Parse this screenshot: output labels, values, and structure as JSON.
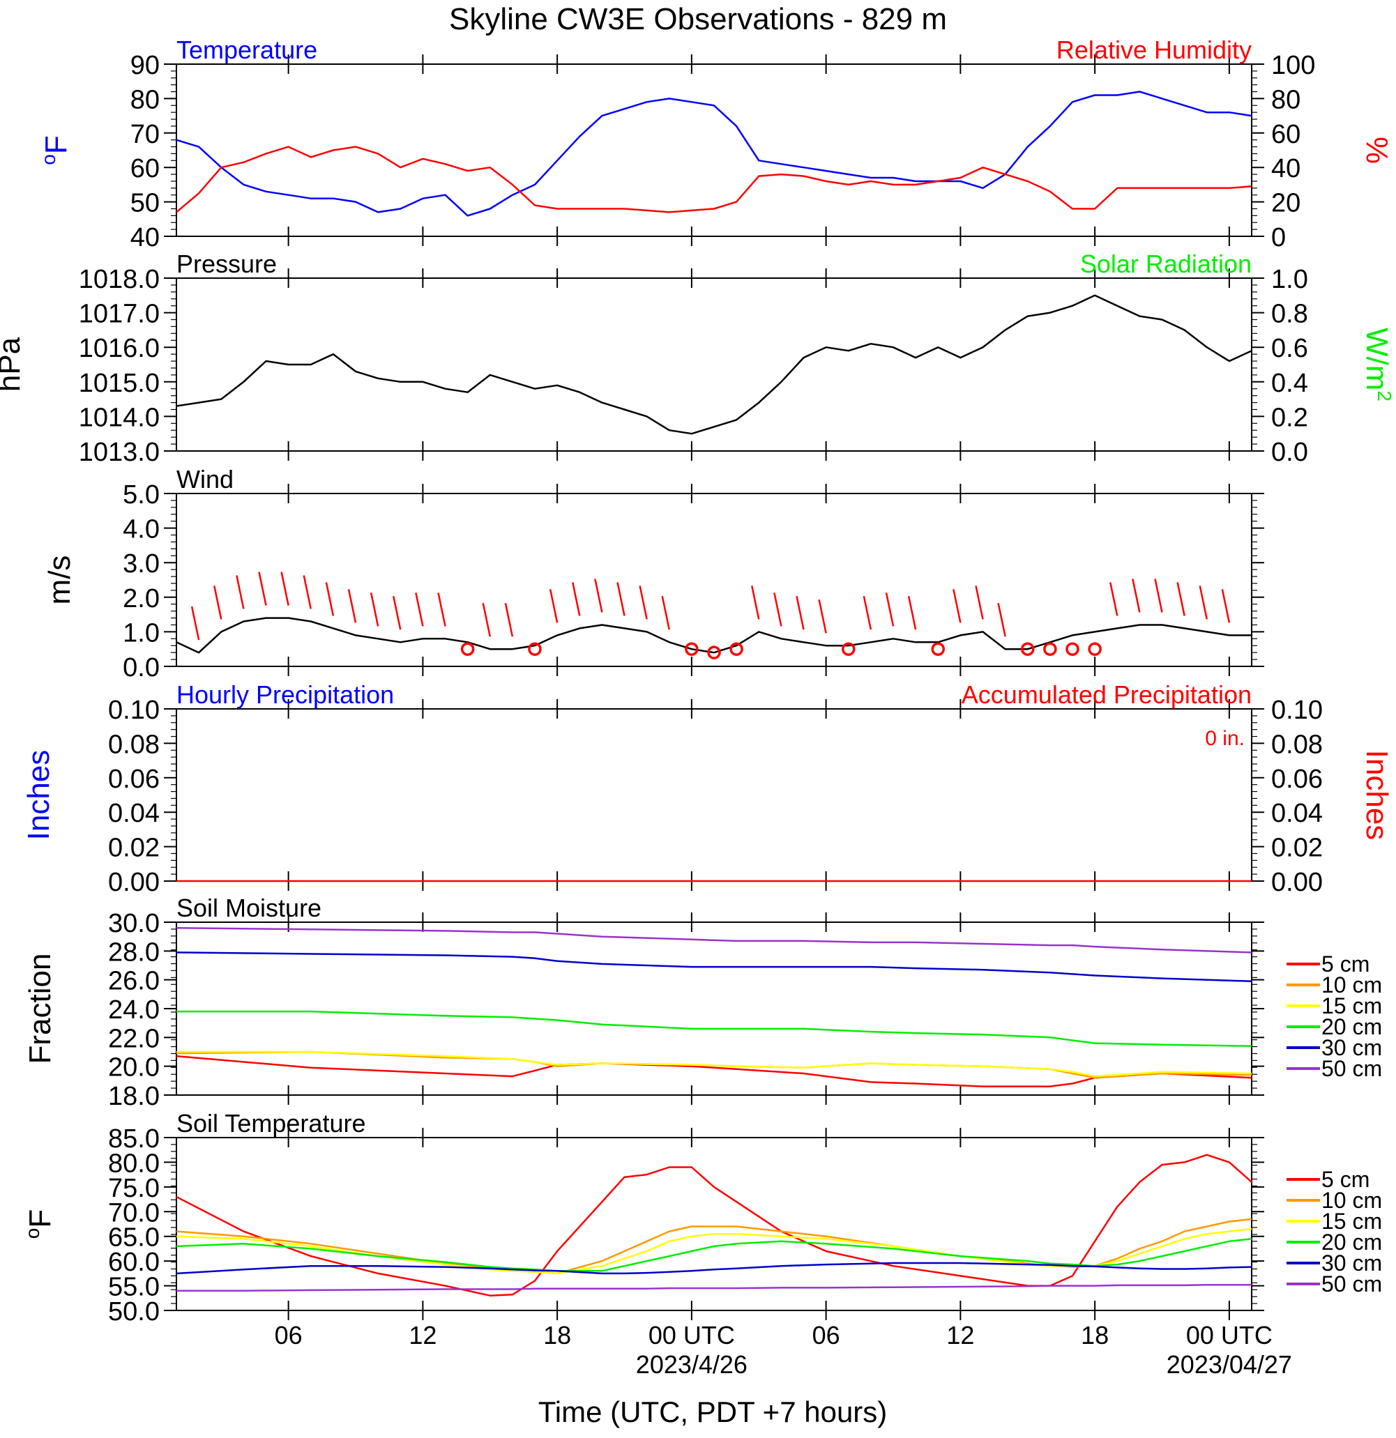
{
  "title": "Skyline CW3E Observations - 829 m",
  "x_axis": {
    "label": "Time (UTC, PDT +7 hours)",
    "ticks": [
      "06",
      "12",
      "18",
      "00 UTC",
      "06",
      "12",
      "18",
      "00 UTC"
    ],
    "tick_hours": [
      6,
      12,
      18,
      24,
      30,
      36,
      42,
      48
    ],
    "dates": [
      "2023/4/26",
      "2023/04/27"
    ],
    "range_hours": [
      1,
      49
    ]
  },
  "colors": {
    "temperature": "#0000ff",
    "humidity": "#ff0000",
    "pressure": "#000000",
    "solar": "#00ee00",
    "wind": "#000000",
    "barb": "#ff0000",
    "hourly_precip": "#0000ff",
    "accum_precip": "#ff0000",
    "d5": "#ff0000",
    "d10": "#ff9900",
    "d15": "#ffff00",
    "d20": "#00ee00",
    "d30": "#0000cc",
    "d50": "#9933cc"
  },
  "chart_data": [
    {
      "type": "line",
      "title_left": "Temperature",
      "title_right": "Relative Humidity",
      "ylabel_left": "oF",
      "ylabel_right": "%",
      "ylim_left": [
        40,
        90
      ],
      "yticks_left": [
        "90",
        "80",
        "70",
        "60",
        "50",
        "40"
      ],
      "ylim_right": [
        0,
        100
      ],
      "yticks_right": [
        "100",
        "80",
        "60",
        "40",
        "20",
        "0"
      ],
      "x": [
        1,
        2,
        3,
        4,
        5,
        6,
        7,
        8,
        9,
        10,
        11,
        12,
        13,
        14,
        15,
        16,
        17,
        18,
        19,
        20,
        21,
        22,
        23,
        24,
        25,
        26,
        27,
        28,
        29,
        30,
        31,
        32,
        33,
        34,
        35,
        36,
        37,
        38,
        39,
        40,
        41,
        42,
        43,
        44,
        45,
        46,
        47,
        48,
        49
      ],
      "series": [
        {
          "name": "Temperature",
          "axis": "left",
          "values": [
            68,
            66,
            60,
            55,
            53,
            52,
            51,
            51,
            50,
            47,
            48,
            51,
            52,
            46,
            48,
            52,
            55,
            62,
            69,
            75,
            77,
            79,
            80,
            79,
            78,
            72,
            62,
            61,
            60,
            59,
            58,
            57,
            57,
            56,
            56,
            56,
            54,
            58,
            66,
            72,
            79,
            81,
            81,
            82,
            80,
            78,
            76,
            76,
            75
          ]
        },
        {
          "name": "Relative Humidity",
          "axis": "right",
          "values": [
            14,
            25,
            40,
            43,
            48,
            52,
            46,
            50,
            52,
            48,
            40,
            45,
            42,
            38,
            40,
            30,
            18,
            16,
            16,
            16,
            16,
            15,
            14,
            15,
            16,
            20,
            35,
            36,
            35,
            32,
            30,
            32,
            30,
            30,
            32,
            34,
            40,
            36,
            32,
            26,
            16,
            16,
            28,
            28,
            28,
            28,
            28,
            28,
            29
          ]
        }
      ]
    },
    {
      "type": "line",
      "title_left": "Pressure",
      "title_right": "Solar Radiation",
      "ylabel_left": "hPa",
      "ylabel_right": "W/m2",
      "ylim_left": [
        1013,
        1018
      ],
      "yticks_left": [
        "1018.0",
        "1017.0",
        "1016.0",
        "1015.0",
        "1014.0",
        "1013.0"
      ],
      "ylim_right": [
        0,
        1
      ],
      "yticks_right": [
        "1.0",
        "0.8",
        "0.6",
        "0.4",
        "0.2",
        "0.0"
      ],
      "x": [
        1,
        2,
        3,
        4,
        5,
        6,
        7,
        8,
        9,
        10,
        11,
        12,
        13,
        14,
        15,
        16,
        17,
        18,
        19,
        20,
        21,
        22,
        23,
        24,
        25,
        26,
        27,
        28,
        29,
        30,
        31,
        32,
        33,
        34,
        35,
        36,
        37,
        38,
        39,
        40,
        41,
        42,
        43,
        44,
        45,
        46,
        47,
        48,
        49
      ],
      "series": [
        {
          "name": "Pressure",
          "axis": "left",
          "values": [
            1014.3,
            1014.4,
            1014.5,
            1015.0,
            1015.6,
            1015.5,
            1015.5,
            1015.8,
            1015.3,
            1015.1,
            1015.0,
            1015.0,
            1014.8,
            1014.7,
            1015.2,
            1015.0,
            1014.8,
            1014.9,
            1014.7,
            1014.4,
            1014.2,
            1014.0,
            1013.6,
            1013.5,
            1013.7,
            1013.9,
            1014.4,
            1015.0,
            1015.7,
            1016.0,
            1015.9,
            1016.1,
            1016.0,
            1015.7,
            1016.0,
            1015.7,
            1016.0,
            1016.5,
            1016.9,
            1017.0,
            1017.2,
            1017.5,
            1017.2,
            1016.9,
            1016.8,
            1016.5,
            1016.0,
            1015.6,
            1015.9
          ]
        }
      ]
    },
    {
      "type": "line",
      "title_left": "Wind",
      "ylabel_left": "m/s",
      "ylim_left": [
        0,
        5
      ],
      "yticks_left": [
        "5.0",
        "4.0",
        "3.0",
        "2.0",
        "1.0",
        "0.0"
      ],
      "x": [
        1,
        2,
        3,
        4,
        5,
        6,
        7,
        8,
        9,
        10,
        11,
        12,
        13,
        14,
        15,
        16,
        17,
        18,
        19,
        20,
        21,
        22,
        23,
        24,
        25,
        26,
        27,
        28,
        29,
        30,
        31,
        32,
        33,
        34,
        35,
        36,
        37,
        38,
        39,
        40,
        41,
        42,
        43,
        44,
        45,
        46,
        47,
        48,
        49
      ],
      "series": [
        {
          "name": "Wind speed",
          "axis": "left",
          "values": [
            0.7,
            0.4,
            1.0,
            1.3,
            1.4,
            1.4,
            1.3,
            1.1,
            0.9,
            0.8,
            0.7,
            0.8,
            0.8,
            0.7,
            0.5,
            0.5,
            0.6,
            0.9,
            1.1,
            1.2,
            1.1,
            1.0,
            0.7,
            0.5,
            0.4,
            0.6,
            1.0,
            0.8,
            0.7,
            0.6,
            0.6,
            0.7,
            0.8,
            0.7,
            0.7,
            0.9,
            1.0,
            0.5,
            0.5,
            0.7,
            0.9,
            1.0,
            1.1,
            1.2,
            1.2,
            1.1,
            1.0,
            0.9,
            0.9
          ]
        }
      ],
      "calm_hours": [
        14,
        17,
        24,
        25,
        26,
        31,
        35,
        39,
        40,
        41,
        42
      ]
    },
    {
      "type": "line",
      "title_left": "Hourly Precipitation",
      "title_right": "Accumulated Precipitation",
      "annotation": "0 in.",
      "ylabel_left": "Inches",
      "ylabel_right": "Inches",
      "ylim_left": [
        0,
        0.1
      ],
      "yticks_left": [
        "0.10",
        "0.08",
        "0.06",
        "0.04",
        "0.02",
        "0.00"
      ],
      "ylim_right": [
        0,
        0.1
      ],
      "yticks_right": [
        "0.10",
        "0.08",
        "0.06",
        "0.04",
        "0.02",
        "0.00"
      ],
      "x": [
        1,
        49
      ],
      "series": [
        {
          "name": "Accumulated Precipitation",
          "axis": "left",
          "values": [
            0,
            0
          ]
        }
      ]
    },
    {
      "type": "line",
      "title_left": "Soil Moisture",
      "ylabel_left": "Fraction",
      "ylim_left": [
        18,
        30
      ],
      "yticks_left": [
        "30.0",
        "28.0",
        "26.0",
        "24.0",
        "22.0",
        "20.0",
        "18.0"
      ],
      "legend": [
        "5 cm",
        "10 cm",
        "15 cm",
        "20 cm",
        "30 cm",
        "50 cm"
      ],
      "x": [
        1,
        7,
        13,
        16,
        17,
        18,
        20,
        24,
        26,
        29,
        32,
        34,
        37,
        40,
        41,
        42,
        45,
        49
      ],
      "series": [
        {
          "name": "5 cm",
          "values": [
            20.7,
            19.9,
            19.5,
            19.3,
            19.7,
            20.1,
            20.2,
            20.0,
            19.8,
            19.5,
            18.9,
            18.8,
            18.6,
            18.6,
            18.8,
            19.2,
            19.5,
            19.2
          ]
        },
        {
          "name": "10 cm",
          "values": [
            20.9,
            21.0,
            20.6,
            20.5,
            20.3,
            20.0,
            20.2,
            20.1,
            20.0,
            19.9,
            20.2,
            20.1,
            20.0,
            19.8,
            19.5,
            19.2,
            19.5,
            19.4
          ]
        },
        {
          "name": "15 cm",
          "values": [
            21.0,
            21.0,
            20.7,
            20.5,
            20.3,
            20.1,
            20.2,
            20.1,
            20.0,
            19.9,
            20.2,
            20.1,
            20.0,
            19.8,
            19.6,
            19.3,
            19.6,
            19.5
          ]
        },
        {
          "name": "20 cm",
          "values": [
            23.8,
            23.8,
            23.5,
            23.4,
            23.3,
            23.2,
            22.9,
            22.6,
            22.6,
            22.6,
            22.4,
            22.3,
            22.2,
            22.0,
            21.8,
            21.6,
            21.5,
            21.4
          ]
        },
        {
          "name": "30 cm",
          "values": [
            27.9,
            27.8,
            27.7,
            27.6,
            27.5,
            27.3,
            27.1,
            26.9,
            26.9,
            26.9,
            26.9,
            26.8,
            26.7,
            26.5,
            26.4,
            26.3,
            26.1,
            25.9
          ]
        },
        {
          "name": "50 cm",
          "values": [
            29.6,
            29.5,
            29.4,
            29.3,
            29.3,
            29.2,
            29.0,
            28.8,
            28.7,
            28.7,
            28.6,
            28.6,
            28.5,
            28.4,
            28.4,
            28.3,
            28.1,
            27.9
          ]
        }
      ]
    },
    {
      "type": "line",
      "title_left": "Soil Temperature",
      "ylabel_left": "oF",
      "ylim_left": [
        50,
        85
      ],
      "yticks_left": [
        "85.0",
        "80.0",
        "75.0",
        "70.0",
        "65.0",
        "60.0",
        "55.0",
        "50.0"
      ],
      "legend": [
        "5 cm",
        "10 cm",
        "15 cm",
        "20 cm",
        "30 cm",
        "50 cm"
      ],
      "x": [
        1,
        4,
        7,
        10,
        13,
        15,
        16,
        17,
        18,
        20,
        21,
        22,
        23,
        24,
        25,
        26,
        28,
        30,
        33,
        36,
        39,
        40,
        41,
        42,
        43,
        44,
        45,
        46,
        47,
        48,
        49
      ],
      "series": [
        {
          "name": "5 cm",
          "values": [
            73,
            66,
            61,
            57.5,
            55,
            53,
            53.2,
            56,
            62,
            72,
            77,
            77.5,
            79,
            79,
            75,
            72,
            66,
            62,
            59,
            57,
            55,
            55,
            57,
            64,
            71,
            76,
            79.5,
            80,
            81.5,
            80,
            76
          ]
        },
        {
          "name": "10 cm",
          "values": [
            66,
            65,
            63.5,
            61.5,
            59.5,
            58.5,
            58,
            57.8,
            57.5,
            60,
            62,
            64,
            66,
            67,
            67,
            67,
            66,
            65,
            63,
            61,
            59.5,
            59,
            58.8,
            59,
            60.5,
            62.5,
            64,
            66,
            67,
            68,
            68.5
          ]
        },
        {
          "name": "15 cm",
          "values": [
            65,
            64.5,
            63,
            61,
            59.3,
            58.3,
            58,
            57.8,
            57.5,
            59,
            60.5,
            62,
            64,
            65,
            65.5,
            65.5,
            65,
            64.5,
            63,
            61,
            59.3,
            59,
            58.9,
            59,
            60,
            61.5,
            63,
            64.5,
            65.5,
            66,
            66.5
          ]
        },
        {
          "name": "20 cm",
          "values": [
            63,
            63.5,
            62.5,
            61,
            59.8,
            58.8,
            58.5,
            58.3,
            58,
            58,
            59,
            60,
            61,
            62,
            63,
            63.5,
            64,
            63.5,
            62.5,
            61,
            60,
            59.5,
            59.3,
            59,
            59.3,
            60,
            61,
            62,
            63,
            64,
            64.5
          ]
        },
        {
          "name": "30 cm",
          "values": [
            57.5,
            58.3,
            59,
            59,
            58.8,
            58.5,
            58.3,
            58.1,
            58,
            57.5,
            57.5,
            57.6,
            57.8,
            58,
            58.3,
            58.5,
            59,
            59.3,
            59.6,
            59.6,
            59.3,
            59.2,
            59,
            58.9,
            58.7,
            58.5,
            58.4,
            58.4,
            58.5,
            58.7,
            58.8
          ]
        },
        {
          "name": "50 cm",
          "values": [
            54,
            54,
            54.1,
            54.2,
            54.3,
            54.3,
            54.3,
            54.4,
            54.4,
            54.4,
            54.4,
            54.4,
            54.5,
            54.5,
            54.5,
            54.5,
            54.6,
            54.6,
            54.7,
            54.8,
            54.9,
            55,
            55,
            55,
            55.1,
            55.1,
            55.1,
            55.1,
            55.2,
            55.2,
            55.2
          ]
        }
      ]
    }
  ]
}
